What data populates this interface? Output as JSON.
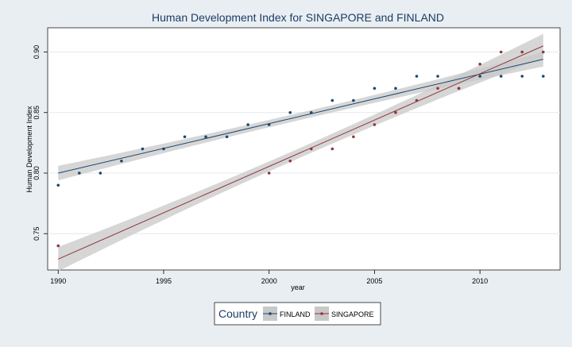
{
  "chart_data": {
    "type": "line",
    "title": "Human Development Index for SINGAPORE and FINLAND",
    "xlabel": "year",
    "ylabel": "Human Development Index",
    "xlim": [
      1989.5,
      2013.8
    ],
    "ylim": [
      0.72,
      0.92
    ],
    "x_ticks": [
      1990,
      1995,
      2000,
      2005,
      2010
    ],
    "y_ticks": [
      0.75,
      0.8,
      0.85,
      0.9
    ],
    "y_tick_labels": [
      "0.75",
      "0.80",
      "0.85",
      "0.90"
    ],
    "grid": true,
    "legend": {
      "title": "Country",
      "position": "bottom-center"
    },
    "series": [
      {
        "name": "FINLAND",
        "color": "#1a476f",
        "points": [
          {
            "x": 1990,
            "y": 0.79
          },
          {
            "x": 1991,
            "y": 0.8
          },
          {
            "x": 1992,
            "y": 0.8
          },
          {
            "x": 1993,
            "y": 0.81
          },
          {
            "x": 1994,
            "y": 0.82
          },
          {
            "x": 1995,
            "y": 0.82
          },
          {
            "x": 1996,
            "y": 0.83
          },
          {
            "x": 1997,
            "y": 0.83
          },
          {
            "x": 1998,
            "y": 0.83
          },
          {
            "x": 1999,
            "y": 0.84
          },
          {
            "x": 2000,
            "y": 0.84
          },
          {
            "x": 2001,
            "y": 0.85
          },
          {
            "x": 2002,
            "y": 0.85
          },
          {
            "x": 2003,
            "y": 0.86
          },
          {
            "x": 2004,
            "y": 0.86
          },
          {
            "x": 2005,
            "y": 0.87
          },
          {
            "x": 2006,
            "y": 0.87
          },
          {
            "x": 2007,
            "y": 0.88
          },
          {
            "x": 2008,
            "y": 0.88
          },
          {
            "x": 2009,
            "y": 0.87
          },
          {
            "x": 2010,
            "y": 0.88
          },
          {
            "x": 2011,
            "y": 0.88
          },
          {
            "x": 2012,
            "y": 0.88
          },
          {
            "x": 2013,
            "y": 0.88
          }
        ],
        "fit": {
          "x": [
            1990,
            2013
          ],
          "y": [
            0.8,
            0.894
          ]
        }
      },
      {
        "name": "SINGAPORE",
        "color": "#90353b",
        "points": [
          {
            "x": 1990,
            "y": 0.74
          },
          {
            "x": 2000,
            "y": 0.8
          },
          {
            "x": 2001,
            "y": 0.81
          },
          {
            "x": 2002,
            "y": 0.82
          },
          {
            "x": 2003,
            "y": 0.82
          },
          {
            "x": 2004,
            "y": 0.83
          },
          {
            "x": 2005,
            "y": 0.84
          },
          {
            "x": 2006,
            "y": 0.85
          },
          {
            "x": 2007,
            "y": 0.86
          },
          {
            "x": 2008,
            "y": 0.87
          },
          {
            "x": 2009,
            "y": 0.87
          },
          {
            "x": 2010,
            "y": 0.89
          },
          {
            "x": 2011,
            "y": 0.9
          },
          {
            "x": 2012,
            "y": 0.9
          },
          {
            "x": 2013,
            "y": 0.9
          }
        ],
        "fit": {
          "x": [
            1990,
            2013
          ],
          "y": [
            0.729,
            0.905
          ]
        }
      }
    ]
  },
  "colors": {
    "background": "#e8eef2",
    "plot_area": "#ffffff",
    "gridline": "#e4e9ed",
    "confidence_band": "#c8c8c8"
  }
}
